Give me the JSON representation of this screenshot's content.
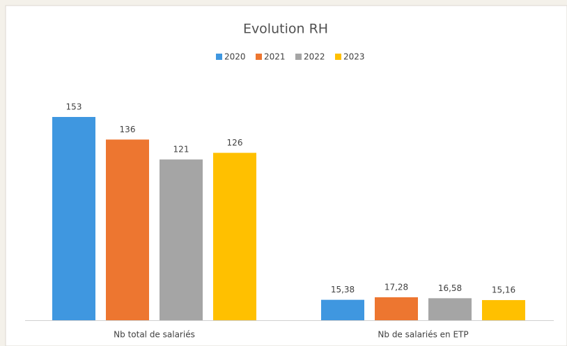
{
  "chart_data": {
    "type": "bar",
    "title": "Evolution RH",
    "categories": [
      "Nb total de salariés",
      "Nb de salariés en ETP"
    ],
    "series": [
      {
        "name": "2020",
        "color": "#3f97e0",
        "values": [
          153,
          15.38
        ],
        "value_labels": [
          "153",
          "15,38"
        ]
      },
      {
        "name": "2021",
        "color": "#ed7630",
        "values": [
          136,
          17.28
        ],
        "value_labels": [
          "136",
          "17,28"
        ]
      },
      {
        "name": "2022",
        "color": "#a5a5a5",
        "values": [
          121,
          16.58
        ],
        "value_labels": [
          "121",
          "16,58"
        ]
      },
      {
        "name": "2023",
        "color": "#ffc000",
        "values": [
          126,
          15.16
        ],
        "value_labels": [
          "126",
          "15,16"
        ]
      }
    ],
    "legend": "top"
  }
}
